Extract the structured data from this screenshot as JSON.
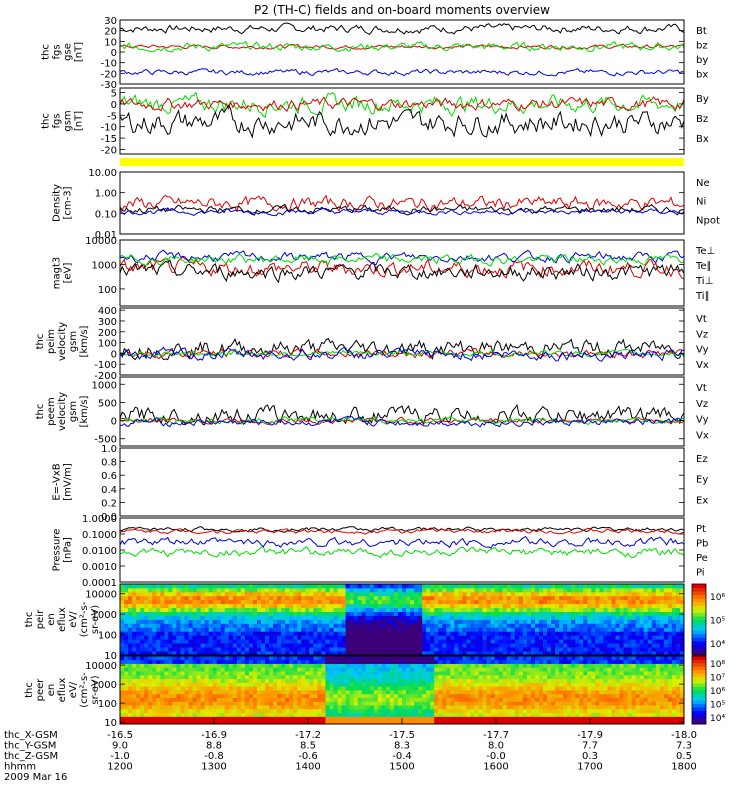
{
  "title": "P2 (TH-C) fields and on-board moments overview",
  "colors": {
    "black": "#000000",
    "red": "#dd0000",
    "green": "#00dd00",
    "blue": "#0000dd",
    "yellow": "#ffff00"
  },
  "panels": [
    {
      "id": "fgs-gse",
      "ylabel": [
        "thc",
        "fgs",
        "gse",
        "[nT]"
      ],
      "ticks": [
        "30",
        "20",
        "10",
        "0",
        "-10",
        "-20",
        "-30"
      ],
      "ylim": [
        -30,
        30
      ],
      "scale": "linear",
      "series": [
        {
          "name": "Bt",
          "color": "black",
          "base": 22,
          "amp": 3
        },
        {
          "name": "bz",
          "color": "red",
          "base": 5,
          "amp": 1.5
        },
        {
          "name": "by",
          "color": "green",
          "base": 5,
          "amp": 3
        },
        {
          "name": "bx",
          "color": "blue",
          "base": -19,
          "amp": 2
        }
      ]
    },
    {
      "id": "fgs-gsm",
      "ylabel": [
        "thc",
        "fgs",
        "gsm",
        "[nT]"
      ],
      "ticks": [
        "5",
        "0",
        "-5",
        "-10",
        "-15",
        "-20"
      ],
      "ylim": [
        -22,
        7
      ],
      "scale": "linear",
      "series": [
        {
          "name": "By",
          "color": "green",
          "base": 0,
          "amp": 3
        },
        {
          "name": "Bz",
          "color": "red",
          "base": 0,
          "amp": 2
        },
        {
          "name": "Bx",
          "color": "black",
          "base": -8,
          "amp": 4
        }
      ]
    },
    {
      "id": "density",
      "ylabel": [
        "Density",
        "[cm-3]"
      ],
      "ticks": [
        "10.00",
        "1.00",
        "0.10",
        "0.01"
      ],
      "ylim": [
        0.01,
        10
      ],
      "scale": "log",
      "series": [
        {
          "name": "Ne",
          "color": "red",
          "base": 0.3,
          "amp": 0.5
        },
        {
          "name": "Ni",
          "color": "black",
          "base": 0.15,
          "amp": 0.3
        },
        {
          "name": "Npot",
          "color": "blue",
          "base": 0.12,
          "amp": 0.2
        }
      ]
    },
    {
      "id": "temperature",
      "ylabel": [
        "magt3",
        "[eV]"
      ],
      "ticks": [
        "10000",
        "1000",
        "100"
      ],
      "ylim": [
        20,
        10000
      ],
      "scale": "log",
      "series": [
        {
          "name": "Te⊥",
          "color": "red",
          "base": 700,
          "amp": 0.5
        },
        {
          "name": "Te∥",
          "color": "black",
          "base": 500,
          "amp": 0.5
        },
        {
          "name": "Ti⊥",
          "color": "blue",
          "base": 2000,
          "amp": 0.3
        },
        {
          "name": "Ti∥",
          "color": "green",
          "base": 1600,
          "amp": 0.3
        }
      ]
    },
    {
      "id": "peim-velocity",
      "ylabel": [
        "thc",
        "peim",
        "velocity",
        "gsm",
        "[km/s]"
      ],
      "ticks": [
        "400",
        "300",
        "200",
        "100",
        "0",
        "-100",
        "-200"
      ],
      "ylim": [
        -200,
        420
      ],
      "scale": "linear",
      "series": [
        {
          "name": "Vt",
          "color": "black",
          "base": 50,
          "amp": 60
        },
        {
          "name": "Vz",
          "color": "red",
          "base": 0,
          "amp": 30
        },
        {
          "name": "Vy",
          "color": "green",
          "base": 0,
          "amp": 20
        },
        {
          "name": "Vx",
          "color": "blue",
          "base": -10,
          "amp": 40
        }
      ]
    },
    {
      "id": "peem-velocity",
      "ylabel": [
        "thc",
        "peem",
        "velocity",
        "gsm",
        "[km/s]"
      ],
      "ticks": [
        "1000",
        "500",
        "0",
        "-500"
      ],
      "ylim": [
        -700,
        1200
      ],
      "scale": "linear",
      "series": [
        {
          "name": "Vt",
          "color": "black",
          "base": 150,
          "amp": 180
        },
        {
          "name": "Vz",
          "color": "red",
          "base": 0,
          "amp": 60
        },
        {
          "name": "Vy",
          "color": "green",
          "base": 0,
          "amp": 60
        },
        {
          "name": "Vx",
          "color": "blue",
          "base": -50,
          "amp": 80
        }
      ]
    },
    {
      "id": "efield",
      "ylabel": [
        "E=-VxB",
        "[mV/m]"
      ],
      "ticks": [
        "1.0",
        "0.8",
        "0.6",
        "0.4",
        "0.2",
        "0.0"
      ],
      "ylim": [
        0,
        1
      ],
      "scale": "linear",
      "series": [
        {
          "name": "Ez",
          "color": "red",
          "base": null,
          "amp": 0
        },
        {
          "name": "Ey",
          "color": "green",
          "base": null,
          "amp": 0
        },
        {
          "name": "Ex",
          "color": "blue",
          "base": null,
          "amp": 0
        }
      ]
    },
    {
      "id": "pressure",
      "ylabel": [
        "Pressure",
        "[nPa]"
      ],
      "ticks": [
        "1.0000",
        "0.1000",
        "0.0100",
        "0.0010",
        "0.0001"
      ],
      "ylim": [
        0.0001,
        1
      ],
      "scale": "log",
      "series": [
        {
          "name": "Pt",
          "color": "black",
          "base": 0.2,
          "amp": 0.2
        },
        {
          "name": "Pb",
          "color": "red",
          "base": 0.15,
          "amp": 0.2
        },
        {
          "name": "Pe",
          "color": "green",
          "base": 0.007,
          "amp": 0.4
        },
        {
          "name": "Pi",
          "color": "blue",
          "base": 0.03,
          "amp": 0.4
        }
      ]
    },
    {
      "id": "peir-efflux",
      "ylabel": [
        "thc",
        "peir",
        "en",
        "eflux",
        "eV/",
        "(cm²-s-",
        "sr-eV)"
      ],
      "ticks": [
        "10000",
        "1000",
        "100",
        "10"
      ],
      "ylim": [
        10,
        30000
      ],
      "scale": "log",
      "spectrogram": "ion",
      "colorbar": {
        "ticks": [
          "10⁶",
          "10⁵",
          "10⁴"
        ],
        "range": [
          3.5,
          6
        ]
      }
    },
    {
      "id": "peer-efflux",
      "ylabel": [
        "thc",
        "peer",
        "en",
        "eflux",
        "eV/",
        "(cm²-s-",
        "sr-eV)"
      ],
      "ticks": [
        "10000",
        "1000",
        "100",
        "10"
      ],
      "ylim": [
        8,
        30000
      ],
      "scale": "log",
      "spectrogram": "electron",
      "colorbar": {
        "ticks": [
          "10⁸",
          "10⁷",
          "10⁶",
          "10⁵",
          "10⁴"
        ],
        "range": [
          3.5,
          8
        ]
      }
    }
  ],
  "x_axis": {
    "rows": [
      {
        "label": "thc_X-GSM",
        "values": [
          "-16.5",
          "-16.9",
          "-17.2",
          "-17.5",
          "-17.7",
          "-17.9",
          "-18.0"
        ]
      },
      {
        "label": "thc_Y-GSM",
        "values": [
          "9.0",
          "8.8",
          "8.5",
          "8.3",
          "8.0",
          "7.7",
          "7.3"
        ]
      },
      {
        "label": "thc_Z-GSM",
        "values": [
          "-1.0",
          "-0.8",
          "-0.6",
          "-0.4",
          "-0.0",
          "0.3",
          "0.5"
        ]
      },
      {
        "label": "hhmm",
        "values": [
          "1200",
          "1300",
          "1400",
          "1500",
          "1600",
          "1700",
          "1800"
        ]
      }
    ],
    "date": "2009 Mar 16"
  },
  "chart_data": {
    "type": "line",
    "title": "P2 (TH-C) fields and on-board moments overview",
    "x": [
      "1200",
      "1300",
      "1400",
      "1500",
      "1600",
      "1700",
      "1800"
    ],
    "xlabel": "hhmm",
    "series": [
      {
        "name": "Bt",
        "values": [
          22,
          24,
          20,
          22,
          21,
          22,
          23
        ]
      },
      {
        "name": "bz",
        "values": [
          5,
          4,
          4,
          6,
          5,
          4,
          5
        ]
      },
      {
        "name": "by",
        "values": [
          4,
          7,
          3,
          6,
          5,
          4,
          4
        ]
      },
      {
        "name": "bx",
        "values": [
          -19,
          -18,
          -17,
          -16,
          -18,
          -19,
          -20
        ]
      },
      {
        "name": "Bx",
        "values": [
          -10,
          -6,
          -3,
          -9,
          -8,
          -10,
          -15
        ]
      },
      {
        "name": "Ne",
        "values": [
          0.4,
          0.5,
          0.4,
          0.3,
          0.2,
          0.3,
          0.3
        ]
      },
      {
        "name": "Ni",
        "values": [
          0.15,
          0.2,
          0.2,
          0.25,
          0.1,
          0.2,
          0.2
        ]
      },
      {
        "name": "Pt",
        "values": [
          0.2,
          0.15,
          0.1,
          0.15,
          0.2,
          0.25,
          0.3
        ]
      },
      {
        "name": "Pe",
        "values": [
          0.01,
          0.005,
          0.003,
          0.005,
          0.006,
          0.01,
          0.01
        ]
      }
    ]
  }
}
